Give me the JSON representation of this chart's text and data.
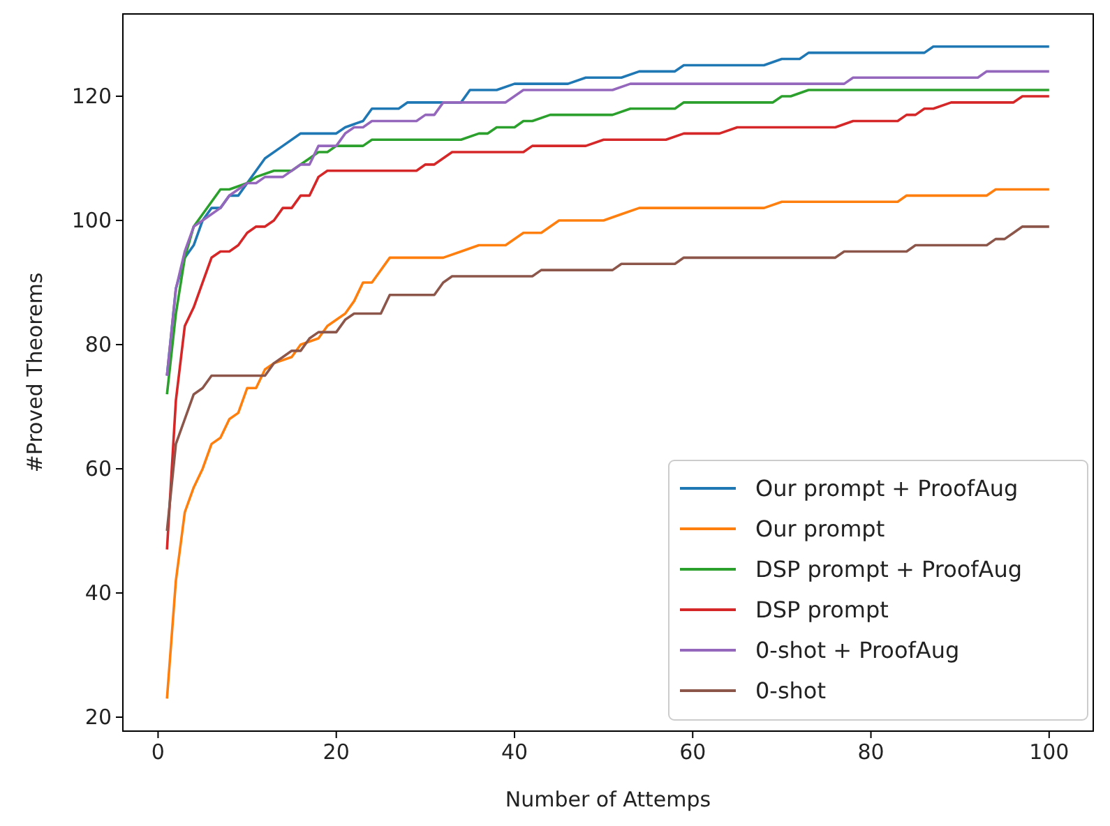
{
  "chart_data": {
    "type": "line",
    "xlabel": "Number of Attemps",
    "ylabel": "#Proved Theorems",
    "xlim": [
      -3.95,
      104.95
    ],
    "ylim": [
      17.75,
      133.25
    ],
    "xticks": [
      0,
      20,
      40,
      60,
      80,
      100
    ],
    "yticks": [
      20,
      40,
      60,
      80,
      100,
      120
    ],
    "grid": false,
    "legend": "bottom right",
    "series": [
      {
        "name": "Our prompt + ProofAug",
        "color": "#1f77b4",
        "x": [
          1,
          2,
          3,
          4,
          5,
          6,
          7,
          8,
          9,
          10,
          11,
          12,
          14,
          16,
          20,
          21,
          23,
          24,
          27,
          28,
          34,
          35,
          38,
          40,
          46,
          48,
          52,
          54,
          58,
          59,
          68,
          70,
          72,
          73,
          86,
          87,
          100
        ],
        "values": [
          75,
          89,
          94,
          96,
          100,
          102,
          102,
          104,
          104,
          106,
          108,
          110,
          112,
          114,
          114,
          115,
          116,
          118,
          118,
          119,
          119,
          121,
          121,
          122,
          122,
          123,
          123,
          124,
          124,
          125,
          125,
          126,
          126,
          127,
          127,
          128,
          128
        ]
      },
      {
        "name": "Our prompt",
        "color": "#ff7f0e",
        "x": [
          1,
          2,
          3,
          4,
          5,
          6,
          7,
          8,
          9,
          10,
          11,
          12,
          13,
          15,
          16,
          18,
          19,
          21,
          22,
          23,
          24,
          26,
          32,
          34,
          36,
          39,
          41,
          43,
          45,
          50,
          52,
          54,
          68,
          70,
          83,
          84,
          93,
          94,
          100
        ],
        "values": [
          23,
          42,
          53,
          57,
          60,
          64,
          65,
          68,
          69,
          73,
          73,
          76,
          77,
          78,
          80,
          81,
          83,
          85,
          87,
          90,
          90,
          94,
          94,
          95,
          96,
          96,
          98,
          98,
          100,
          100,
          101,
          102,
          102,
          103,
          103,
          104,
          104,
          105,
          105
        ]
      },
      {
        "name": "DSP prompt + ProofAug",
        "color": "#2ca02c",
        "x": [
          1,
          2,
          3,
          4,
          5,
          6,
          7,
          8,
          10,
          11,
          13,
          15,
          16,
          17,
          18,
          19,
          20,
          23,
          24,
          34,
          36,
          37,
          38,
          40,
          41,
          42,
          44,
          51,
          53,
          58,
          59,
          69,
          70,
          71,
          73,
          100
        ],
        "values": [
          72,
          85,
          94,
          99,
          101,
          103,
          105,
          105,
          106,
          107,
          108,
          108,
          109,
          110,
          111,
          111,
          112,
          112,
          113,
          113,
          114,
          114,
          115,
          115,
          116,
          116,
          117,
          117,
          118,
          118,
          119,
          119,
          120,
          120,
          121,
          121
        ]
      },
      {
        "name": "DSP prompt",
        "color": "#d62728",
        "x": [
          1,
          2,
          3,
          4,
          5,
          6,
          7,
          8,
          9,
          10,
          11,
          12,
          13,
          14,
          15,
          16,
          17,
          18,
          19,
          29,
          30,
          31,
          33,
          41,
          42,
          48,
          50,
          57,
          59,
          63,
          65,
          76,
          78,
          83,
          84,
          85,
          86,
          87,
          89,
          96,
          97,
          100
        ],
        "values": [
          47,
          71,
          83,
          86,
          90,
          94,
          95,
          95,
          96,
          98,
          99,
          99,
          100,
          102,
          102,
          104,
          104,
          107,
          108,
          108,
          109,
          109,
          111,
          111,
          112,
          112,
          113,
          113,
          114,
          114,
          115,
          115,
          116,
          116,
          117,
          117,
          118,
          118,
          119,
          119,
          120,
          120
        ]
      },
      {
        "name": "0-shot + ProofAug",
        "color": "#9467bd",
        "x": [
          1,
          2,
          3,
          4,
          5,
          6,
          7,
          8,
          9,
          10,
          11,
          12,
          14,
          16,
          17,
          18,
          20,
          21,
          22,
          23,
          24,
          29,
          30,
          31,
          32,
          39,
          41,
          51,
          53,
          77,
          78,
          92,
          93,
          100
        ],
        "values": [
          75,
          89,
          95,
          99,
          100,
          101,
          102,
          104,
          105,
          106,
          106,
          107,
          107,
          109,
          109,
          112,
          112,
          114,
          115,
          115,
          116,
          116,
          117,
          117,
          119,
          119,
          121,
          121,
          122,
          122,
          123,
          123,
          124,
          124
        ]
      },
      {
        "name": "0-shot",
        "color": "#8c564b",
        "x": [
          1,
          2,
          3,
          4,
          5,
          6,
          12,
          13,
          15,
          16,
          17,
          18,
          20,
          21,
          22,
          25,
          26,
          31,
          32,
          33,
          42,
          43,
          51,
          52,
          58,
          59,
          76,
          77,
          84,
          85,
          93,
          94,
          95,
          96,
          97,
          100
        ],
        "values": [
          50,
          64,
          68,
          72,
          73,
          75,
          75,
          77,
          79,
          79,
          81,
          82,
          82,
          84,
          85,
          85,
          88,
          88,
          90,
          91,
          91,
          92,
          92,
          93,
          93,
          94,
          94,
          95,
          95,
          96,
          96,
          97,
          97,
          98,
          99,
          99
        ]
      }
    ]
  }
}
